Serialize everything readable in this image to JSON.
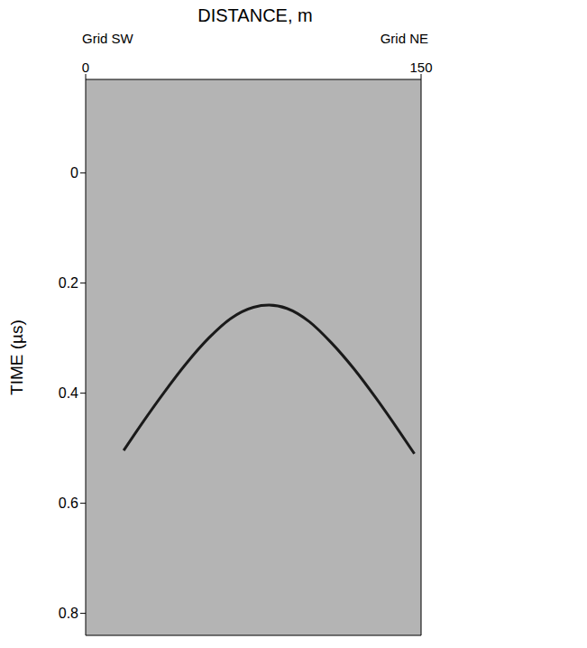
{
  "chart_data": {
    "type": "line",
    "xlabel": "DISTANCE, m",
    "ylabel": "TIME (µs)",
    "annotations": [
      "Grid SW",
      "Grid NE"
    ],
    "x": [
      17,
      25,
      35,
      45,
      55,
      65,
      75,
      82,
      90,
      100,
      110,
      120,
      130,
      140,
      147
    ],
    "values": [
      0.504,
      0.456,
      0.399,
      0.346,
      0.3,
      0.264,
      0.244,
      0.24,
      0.246,
      0.27,
      0.309,
      0.356,
      0.41,
      0.468,
      0.51
    ],
    "color": "#1a1a1a",
    "xlim": [
      0,
      150
    ],
    "xticks": [
      0,
      150
    ],
    "ylim": [
      -0.17,
      0.84
    ],
    "yticks": [
      0,
      0.2,
      0.4,
      0.6,
      0.8
    ],
    "grid": false
  }
}
